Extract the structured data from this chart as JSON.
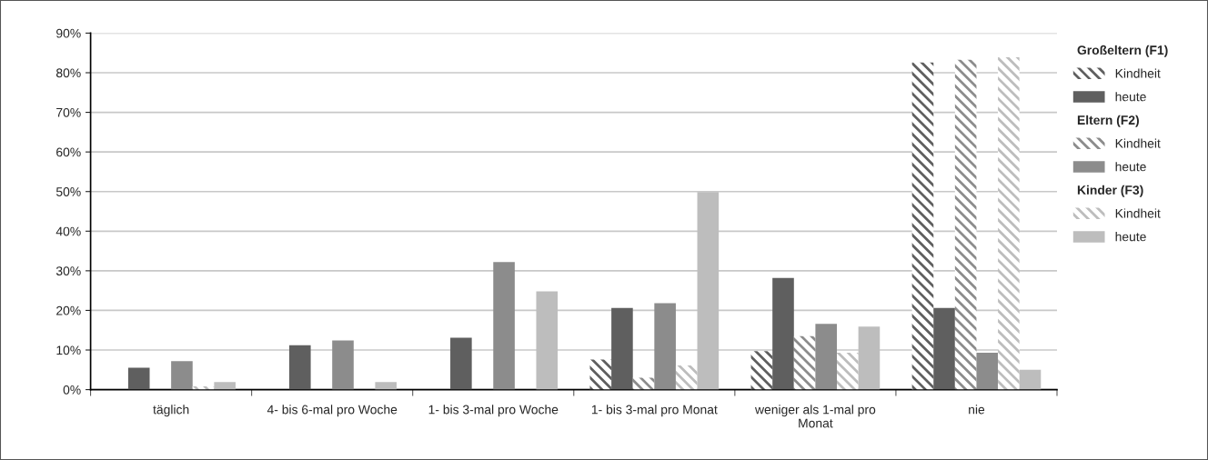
{
  "chart_data": {
    "type": "bar",
    "categories": [
      "täglich",
      "4- bis 6-mal pro Woche",
      "1- bis 3-mal pro Woche",
      "1- bis 3-mal pro Monat",
      "weniger als 1-mal pro\nMonat",
      "nie"
    ],
    "series": [
      {
        "name": "Kindheit",
        "color": "#5f5f5f",
        "values": [
          0,
          0,
          0,
          7.6,
          9.7,
          82.6
        ]
      },
      {
        "name": "heute",
        "color": "#5f5f5f",
        "values": [
          5.5,
          11.2,
          13.1,
          20.6,
          28.2,
          20.6
        ]
      },
      {
        "name": "Kindheit",
        "color": "#8c8c8c",
        "values": [
          0,
          0,
          0,
          3.0,
          13.5,
          83.3
        ]
      },
      {
        "name": "heute",
        "color": "#8c8c8c",
        "values": [
          7.2,
          12.4,
          32.2,
          21.8,
          16.6,
          9.3
        ]
      },
      {
        "name": "Kindheit",
        "color": "#bdbdbd",
        "values": [
          0.8,
          0,
          0,
          6.1,
          9.3,
          83.9
        ]
      },
      {
        "name": "heute",
        "color": "#bdbdbd",
        "values": [
          1.9,
          1.9,
          24.8,
          49.9,
          15.9,
          5.0
        ]
      }
    ],
    "annotations": [
      "Großeltern (F1)",
      "Eltern (F2)",
      "Kinder (F3)"
    ],
    "ylim": [
      0,
      90
    ],
    "yticks": [
      {
        "value": 0,
        "label": "0%"
      },
      {
        "value": 10,
        "label": "10%"
      },
      {
        "value": 20,
        "label": "20%"
      },
      {
        "value": 30,
        "label": "30%"
      },
      {
        "value": 40,
        "label": "40%"
      },
      {
        "value": 50,
        "label": "50%"
      },
      {
        "value": 60,
        "label": "60%"
      },
      {
        "value": 70,
        "label": "70%"
      },
      {
        "value": 80,
        "label": "80%"
      },
      {
        "value": 90,
        "label": "90%"
      }
    ],
    "grid": "y",
    "legend": "right"
  }
}
